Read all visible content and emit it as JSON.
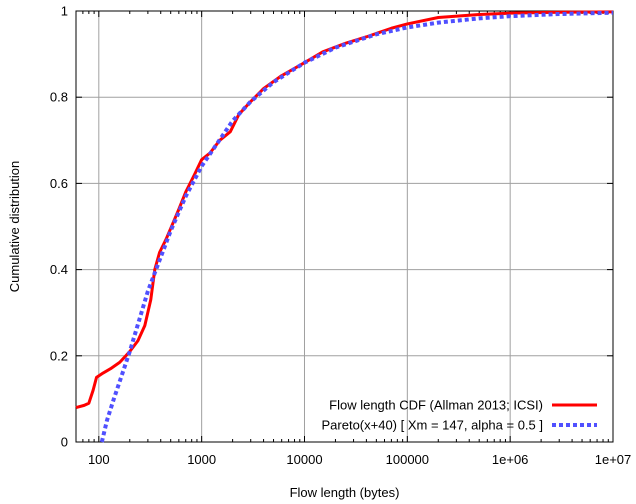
{
  "chart_data": {
    "type": "line",
    "xlabel": "Flow length (bytes)",
    "ylabel": "Cumulative distribution",
    "x_scale": "log",
    "xlim": [
      60,
      10000000
    ],
    "ylim": [
      0,
      1
    ],
    "x_ticks": [
      {
        "value": 100,
        "label": "100"
      },
      {
        "value": 1000,
        "label": "1000"
      },
      {
        "value": 10000,
        "label": "10000"
      },
      {
        "value": 100000,
        "label": "100000"
      },
      {
        "value": 1000000,
        "label": "1e+06"
      },
      {
        "value": 10000000,
        "label": "1e+07"
      }
    ],
    "y_ticks": [
      {
        "value": 0,
        "label": "0"
      },
      {
        "value": 0.2,
        "label": "0.2"
      },
      {
        "value": 0.4,
        "label": "0.4"
      },
      {
        "value": 0.6,
        "label": "0.6"
      },
      {
        "value": 0.8,
        "label": "0.8"
      },
      {
        "value": 1,
        "label": "1"
      }
    ],
    "grid": true,
    "legend_position": "bottom-right",
    "series": [
      {
        "name": "Flow length CDF (Allman 2013; ICSI)",
        "color": "#ff0000",
        "style": "solid",
        "points": [
          [
            60,
            0.08
          ],
          [
            72,
            0.085
          ],
          [
            80,
            0.09
          ],
          [
            88,
            0.12
          ],
          [
            95,
            0.15
          ],
          [
            110,
            0.16
          ],
          [
            130,
            0.17
          ],
          [
            160,
            0.185
          ],
          [
            200,
            0.21
          ],
          [
            240,
            0.235
          ],
          [
            280,
            0.27
          ],
          [
            320,
            0.33
          ],
          [
            350,
            0.4
          ],
          [
            390,
            0.44
          ],
          [
            450,
            0.47
          ],
          [
            520,
            0.505
          ],
          [
            600,
            0.54
          ],
          [
            700,
            0.58
          ],
          [
            850,
            0.62
          ],
          [
            1000,
            0.655
          ],
          [
            1200,
            0.67
          ],
          [
            1500,
            0.7
          ],
          [
            1900,
            0.72
          ],
          [
            2300,
            0.76
          ],
          [
            3000,
            0.79
          ],
          [
            4000,
            0.82
          ],
          [
            6000,
            0.85
          ],
          [
            10000,
            0.88
          ],
          [
            15000,
            0.905
          ],
          [
            25000,
            0.925
          ],
          [
            40000,
            0.94
          ],
          [
            70000,
            0.96
          ],
          [
            100000,
            0.97
          ],
          [
            200000,
            0.985
          ],
          [
            500000,
            0.992
          ],
          [
            1000000,
            0.995
          ],
          [
            3000000,
            0.997
          ],
          [
            10000000,
            0.998
          ]
        ]
      },
      {
        "name": "Pareto(x+40) [ Xm = 147, alpha = 0.5 ]",
        "color": "#5050ff",
        "style": "dotted",
        "points": [
          [
            107,
            0.0
          ],
          [
            120,
            0.05
          ],
          [
            140,
            0.1
          ],
          [
            200,
            0.21
          ],
          [
            300,
            0.35
          ],
          [
            500,
            0.49
          ],
          [
            700,
            0.57
          ],
          [
            1000,
            0.64
          ],
          [
            2000,
            0.745
          ],
          [
            3000,
            0.79
          ],
          [
            5000,
            0.835
          ],
          [
            10000,
            0.88
          ],
          [
            20000,
            0.915
          ],
          [
            50000,
            0.946
          ],
          [
            100000,
            0.962
          ],
          [
            200000,
            0.973
          ],
          [
            500000,
            0.983
          ],
          [
            1000000,
            0.988
          ],
          [
            3000000,
            0.993
          ],
          [
            10000000,
            0.996
          ]
        ]
      }
    ]
  }
}
